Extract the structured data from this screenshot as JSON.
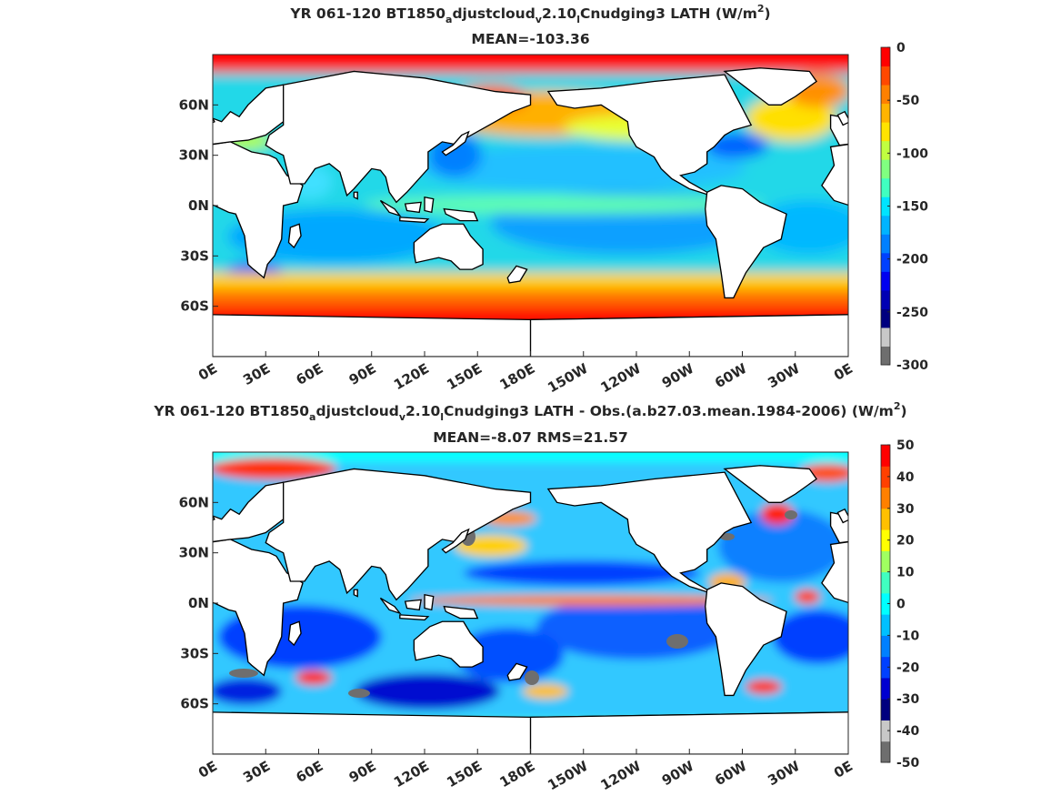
{
  "chart_data": [
    {
      "type": "heatmap",
      "title": {
        "pre": "YR 061-120 BT1850",
        "sub1": "a",
        "mid1": "djustcloud",
        "sub2": "v",
        "mid2": "2.10",
        "sub3": "l",
        "mid3": "Cnudging3  LATH (W/m",
        "sup": "2",
        "post": ")"
      },
      "subtitle": "MEAN=-103.36",
      "x_ticks": [
        "0E",
        "30E",
        "60E",
        "90E",
        "120E",
        "150E",
        "180E",
        "150W",
        "120W",
        "90W",
        "60W",
        "30W",
        "0E"
      ],
      "y_ticks": [
        "60N",
        "30N",
        "0N",
        "30S",
        "60S"
      ],
      "y_tick_values": [
        60,
        30,
        0,
        -30,
        -60
      ],
      "xlim": [
        0,
        360
      ],
      "ylim": [
        -90,
        90
      ],
      "colorbar": {
        "ticks": [
          "0",
          "-50",
          "-100",
          "-150",
          "-200",
          "-250",
          "-300"
        ],
        "range": [
          -300,
          0
        ],
        "colors": [
          "#6e6e6e",
          "#c8c8c8",
          "#00007f",
          "#0000b4",
          "#0000f0",
          "#0040ff",
          "#0080ff",
          "#00b4ff",
          "#00e4ff",
          "#40ffc0",
          "#80ff80",
          "#c0ff40",
          "#ffe400",
          "#ffb400",
          "#ff8000",
          "#ff4800",
          "#ff0000"
        ]
      },
      "colors": {
        "land": "#ffffff",
        "coast": "#000000"
      }
    },
    {
      "type": "heatmap",
      "title": {
        "pre": "YR 061-120 BT1850",
        "sub1": "a",
        "mid1": "djustcloud",
        "sub2": "v",
        "mid2": "2.10",
        "sub3": "l",
        "mid3": "Cnudging3 LATH - Obs.(a.b27.03.mean.1984-2006) (W/m",
        "sup": "2",
        "post": ")"
      },
      "subtitle": "MEAN=-8.07 RMS=21.57",
      "x_ticks": [
        "0E",
        "30E",
        "60E",
        "90E",
        "120E",
        "150E",
        "180E",
        "150W",
        "120W",
        "90W",
        "60W",
        "30W",
        "0E"
      ],
      "y_ticks": [
        "60N",
        "30N",
        "0N",
        "30S",
        "60S"
      ],
      "y_tick_values": [
        60,
        30,
        0,
        -30,
        -60
      ],
      "xlim": [
        0,
        360
      ],
      "ylim": [
        -90,
        90
      ],
      "colorbar": {
        "ticks": [
          "50",
          "40",
          "30",
          "20",
          "10",
          "0",
          "-10",
          "-20",
          "-30",
          "-40",
          "-50"
        ],
        "range": [
          -50,
          50
        ],
        "colors": [
          "#6e6e6e",
          "#c8c8c8",
          "#00007f",
          "#0000d0",
          "#0040ff",
          "#0080ff",
          "#00c0ff",
          "#00ffff",
          "#40ffc0",
          "#a0ff60",
          "#ffff00",
          "#ffc000",
          "#ff8000",
          "#ff4000",
          "#ff0000"
        ]
      },
      "colors": {
        "land": "#ffffff",
        "coast": "#000000"
      }
    }
  ]
}
